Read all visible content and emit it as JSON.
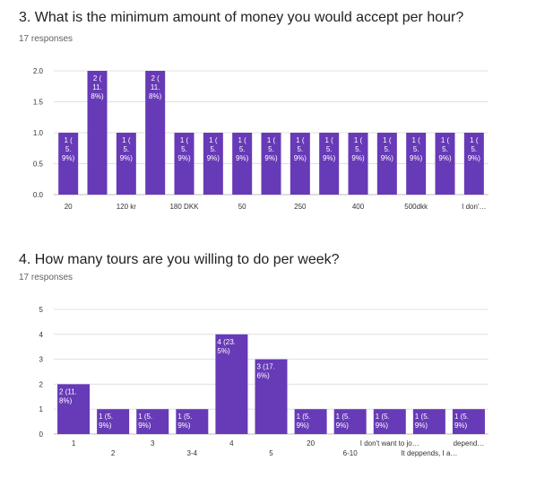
{
  "questions": [
    {
      "title": "3. What is the minimum amount of money you would accept per hour?",
      "responses": "17 responses"
    },
    {
      "title": "4. How many tours are you willing to do per week?",
      "responses": "17 responses"
    }
  ],
  "colors": {
    "bar": "#673ab7",
    "grid": "#e0e0e0",
    "axis": "#bdbdbd"
  },
  "chart_data": [
    {
      "type": "bar",
      "categories": [
        "20",
        "",
        "120 kr",
        "",
        "180 DKK",
        "",
        "50",
        "",
        "250",
        "",
        "400",
        "",
        "500dkk",
        "",
        "I don'…"
      ],
      "values": [
        1,
        2,
        1,
        2,
        1,
        1,
        1,
        1,
        1,
        1,
        1,
        1,
        1,
        1,
        1
      ],
      "data_labels": [
        [
          "1 (",
          "5.",
          "9%)"
        ],
        [
          "2 (",
          "11.",
          "8%)"
        ],
        [
          "1 (",
          "5.",
          "9%)"
        ],
        [
          "2 (",
          "11.",
          "8%)"
        ],
        [
          "1 (",
          "5.",
          "9%)"
        ],
        [
          "1 (",
          "5.",
          "9%)"
        ],
        [
          "1 (",
          "5.",
          "9%)"
        ],
        [
          "1 (",
          "5.",
          "9%)"
        ],
        [
          "1 (",
          "5.",
          "9%)"
        ],
        [
          "1 (",
          "5.",
          "9%)"
        ],
        [
          "1 (",
          "5.",
          "9%)"
        ],
        [
          "1 (",
          "5.",
          "9%)"
        ],
        [
          "1 (",
          "5.",
          "9%)"
        ],
        [
          "1 (",
          "5.",
          "9%)"
        ],
        [
          "1 (",
          "5.",
          "9%)"
        ]
      ],
      "yticks": [
        "0.0",
        "0.5",
        "1.0",
        "1.5",
        "2.0"
      ],
      "ylim": [
        0,
        2
      ],
      "grid": true
    },
    {
      "type": "bar",
      "categories": [
        "1",
        "2",
        "3",
        "3-4",
        "4",
        "5",
        "20",
        "6-10",
        "I don't want to jo…",
        "It deppends, I a…",
        "depend…"
      ],
      "values": [
        2,
        1,
        1,
        1,
        4,
        3,
        1,
        1,
        1,
        1,
        1
      ],
      "data_labels": [
        [
          "2 (11.",
          "8%)"
        ],
        [
          "1 (5.",
          "9%)"
        ],
        [
          "1 (5.",
          "9%)"
        ],
        [
          "1 (5.",
          "9%)"
        ],
        [
          "4 (23.",
          "5%)"
        ],
        [
          "3 (17.",
          "6%)"
        ],
        [
          "1 (5.",
          "9%)"
        ],
        [
          "1 (5.",
          "9%)"
        ],
        [
          "1 (5.",
          "9%)"
        ],
        [
          "1 (5.",
          "9%)"
        ],
        [
          "1 (5.",
          "9%)"
        ]
      ],
      "yticks": [
        "0",
        "1",
        "2",
        "3",
        "4",
        "5"
      ],
      "ylim": [
        0,
        5
      ],
      "grid": true
    }
  ]
}
